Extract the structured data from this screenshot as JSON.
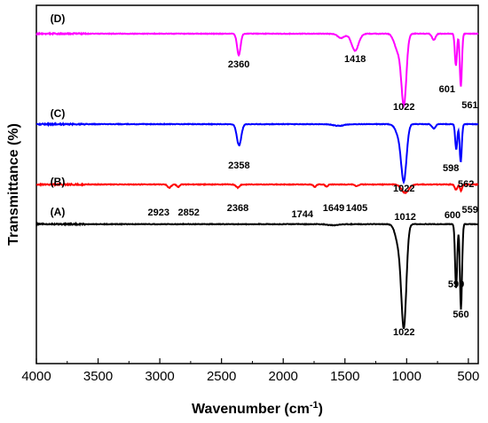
{
  "chart_data": {
    "type": "line",
    "title": "",
    "xlabel": "Wavenumber (cm",
    "xlabel_sup": "-1",
    "xlabel_close": ")",
    "ylabel": "Transmittance (%)",
    "xlim": [
      4000,
      420
    ],
    "x_reversed": true,
    "x_ticks": [
      4000,
      3500,
      3000,
      2500,
      2000,
      1500,
      1000,
      500
    ],
    "y_ticks": [],
    "grid": false,
    "legend": "none",
    "series": [
      {
        "name": "(A)",
        "color": "#000000",
        "baseline": 0.2,
        "bands": [
          {
            "center": 1022,
            "width": 28,
            "depth": 4.5
          },
          {
            "center": 1060,
            "width": 40,
            "depth": 1.0
          },
          {
            "center": 599,
            "width": 12,
            "depth": 3.0
          },
          {
            "center": 560,
            "width": 12,
            "depth": 4.0
          },
          {
            "center": 1600,
            "width": 60,
            "depth": 0.05
          }
        ],
        "peaks": [
          {
            "x": 1022,
            "label": "1022"
          },
          {
            "x": 599,
            "label": "599"
          },
          {
            "x": 560,
            "label": "560"
          }
        ]
      },
      {
        "name": "(B)",
        "color": "#ff0000",
        "baseline": 0.0,
        "bands": [
          {
            "center": 2923,
            "width": 20,
            "depth": 0.15
          },
          {
            "center": 2852,
            "width": 15,
            "depth": 0.12
          },
          {
            "center": 2368,
            "width": 20,
            "depth": 0.15
          },
          {
            "center": 1744,
            "width": 15,
            "depth": 0.12
          },
          {
            "center": 1649,
            "width": 15,
            "depth": 0.1
          },
          {
            "center": 1405,
            "width": 20,
            "depth": 0.08
          },
          {
            "center": 1012,
            "width": 40,
            "depth": 0.4
          },
          {
            "center": 600,
            "width": 15,
            "depth": 0.25
          },
          {
            "center": 559,
            "width": 12,
            "depth": 0.3
          }
        ],
        "peaks": [
          {
            "x": 2923,
            "label": "2923"
          },
          {
            "x": 2852,
            "label": "2852"
          },
          {
            "x": 2368,
            "label": "2368"
          },
          {
            "x": 1744,
            "label": "1744"
          },
          {
            "x": 1649,
            "label": "1649"
          },
          {
            "x": 1405,
            "label": "1405"
          },
          {
            "x": 1012,
            "label": "1012"
          },
          {
            "x": 600,
            "label": "600"
          },
          {
            "x": 559,
            "label": "559"
          }
        ]
      },
      {
        "name": "(C)",
        "color": "#0000ff",
        "baseline": 0.0,
        "bands": [
          {
            "center": 2358,
            "width": 25,
            "depth": 1.0
          },
          {
            "center": 1022,
            "width": 30,
            "depth": 2.5
          },
          {
            "center": 1060,
            "width": 40,
            "depth": 0.5
          },
          {
            "center": 598,
            "width": 12,
            "depth": 1.2
          },
          {
            "center": 562,
            "width": 12,
            "depth": 1.8
          },
          {
            "center": 1550,
            "width": 60,
            "depth": 0.08
          },
          {
            "center": 780,
            "width": 20,
            "depth": 0.2
          }
        ],
        "peaks": [
          {
            "x": 2358,
            "label": "2358"
          },
          {
            "x": 1022,
            "label": "1022"
          },
          {
            "x": 598,
            "label": "598"
          },
          {
            "x": 562,
            "label": "562"
          }
        ]
      },
      {
        "name": "(D)",
        "color": "#ff00ff",
        "baseline": 0.0,
        "bands": [
          {
            "center": 2360,
            "width": 20,
            "depth": 1.0
          },
          {
            "center": 1418,
            "width": 40,
            "depth": 0.8
          },
          {
            "center": 1530,
            "width": 40,
            "depth": 0.2
          },
          {
            "center": 1022,
            "width": 28,
            "depth": 3.2
          },
          {
            "center": 1070,
            "width": 40,
            "depth": 0.8
          },
          {
            "center": 601,
            "width": 12,
            "depth": 1.5
          },
          {
            "center": 561,
            "width": 12,
            "depth": 2.5
          },
          {
            "center": 780,
            "width": 20,
            "depth": 0.3
          }
        ],
        "peaks": [
          {
            "x": 2360,
            "label": "2360"
          },
          {
            "x": 1418,
            "label": "1418"
          },
          {
            "x": 1022,
            "label": "1022"
          },
          {
            "x": 601,
            "label": "601"
          },
          {
            "x": 561,
            "label": "561"
          }
        ]
      }
    ]
  }
}
